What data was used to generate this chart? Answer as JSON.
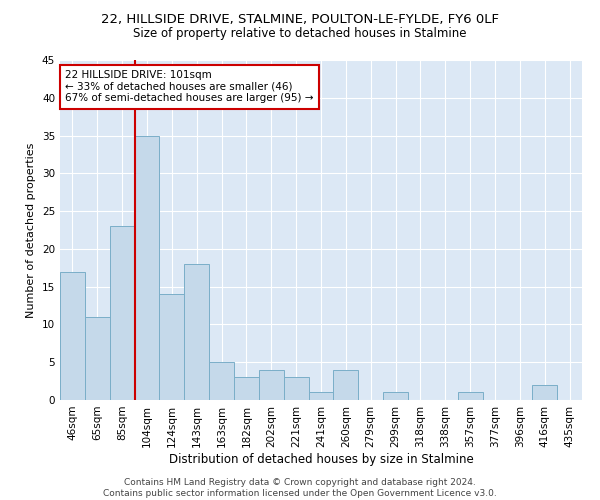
{
  "title_line1": "22, HILLSIDE DRIVE, STALMINE, POULTON-LE-FYLDE, FY6 0LF",
  "title_line2": "Size of property relative to detached houses in Stalmine",
  "xlabel": "Distribution of detached houses by size in Stalmine",
  "ylabel": "Number of detached properties",
  "categories": [
    "46sqm",
    "65sqm",
    "85sqm",
    "104sqm",
    "124sqm",
    "143sqm",
    "163sqm",
    "182sqm",
    "202sqm",
    "221sqm",
    "241sqm",
    "260sqm",
    "279sqm",
    "299sqm",
    "318sqm",
    "338sqm",
    "357sqm",
    "377sqm",
    "396sqm",
    "416sqm",
    "435sqm"
  ],
  "values": [
    17,
    11,
    23,
    35,
    14,
    18,
    5,
    3,
    4,
    3,
    1,
    4,
    0,
    1,
    0,
    0,
    1,
    0,
    0,
    2,
    0
  ],
  "bar_color": "#c5d9ea",
  "bar_edge_color": "#7aaec8",
  "vline_index": 3,
  "vline_color": "#cc0000",
  "annotation_text": "22 HILLSIDE DRIVE: 101sqm\n← 33% of detached houses are smaller (46)\n67% of semi-detached houses are larger (95) →",
  "annotation_box_color": "#cc0000",
  "ylim": [
    0,
    45
  ],
  "yticks": [
    0,
    5,
    10,
    15,
    20,
    25,
    30,
    35,
    40,
    45
  ],
  "background_color": "#dce8f5",
  "footer": "Contains HM Land Registry data © Crown copyright and database right 2024.\nContains public sector information licensed under the Open Government Licence v3.0.",
  "title_fontsize": 9.5,
  "subtitle_fontsize": 8.5,
  "xlabel_fontsize": 8.5,
  "ylabel_fontsize": 8,
  "tick_fontsize": 7.5,
  "footer_fontsize": 6.5,
  "annotation_fontsize": 7.5
}
